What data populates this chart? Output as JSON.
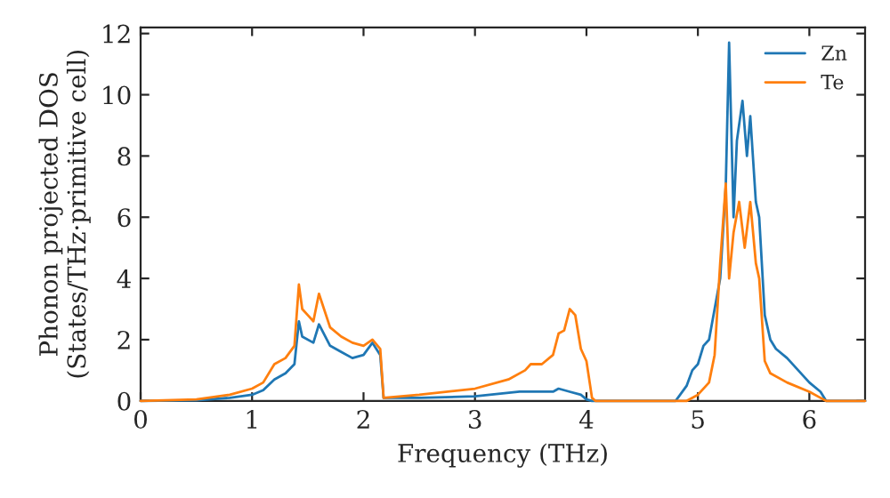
{
  "chart_data": {
    "type": "line",
    "xlabel": "Frequency (THz)",
    "ylabel": "Phonon projected DOS\n(States/THz·primitive cell)",
    "xlim": [
      0,
      6.5
    ],
    "xticks": [
      0,
      1,
      2,
      3,
      4,
      5,
      6
    ],
    "ylim": [
      0,
      12.2
    ],
    "yticks": [
      0,
      2,
      4,
      6,
      8,
      10,
      12
    ],
    "grid": false,
    "legend": "top right",
    "marker": "none",
    "line_style": "solid",
    "series": [
      {
        "name": "Zn",
        "color": "#1f77b4",
        "x": [
          0,
          0.5,
          0.8,
          1.0,
          1.1,
          1.2,
          1.3,
          1.38,
          1.42,
          1.45,
          1.55,
          1.6,
          1.7,
          1.8,
          1.9,
          2.0,
          2.08,
          2.15,
          2.18,
          2.5,
          3.0,
          3.4,
          3.5,
          3.7,
          3.75,
          3.85,
          3.95,
          4.0,
          4.05,
          4.8,
          4.9,
          4.95,
          5.0,
          5.05,
          5.1,
          5.15,
          5.2,
          5.25,
          5.28,
          5.32,
          5.35,
          5.4,
          5.44,
          5.47,
          5.52,
          5.55,
          5.6,
          5.65,
          5.7,
          5.8,
          5.9,
          6.0,
          6.1,
          6.15,
          6.5
        ],
        "values": [
          0,
          0.02,
          0.1,
          0.2,
          0.35,
          0.7,
          0.9,
          1.2,
          2.6,
          2.1,
          1.9,
          2.5,
          1.8,
          1.6,
          1.4,
          1.5,
          1.9,
          1.5,
          0.1,
          0.1,
          0.15,
          0.3,
          0.3,
          0.3,
          0.4,
          0.3,
          0.2,
          0.05,
          0,
          0,
          0.5,
          1.0,
          1.2,
          1.8,
          2.0,
          3.0,
          4.0,
          7.0,
          11.7,
          6.0,
          8.5,
          9.8,
          8.0,
          9.3,
          6.5,
          6.0,
          2.8,
          2.0,
          1.7,
          1.4,
          1.0,
          0.6,
          0.3,
          0,
          0
        ]
      },
      {
        "name": "Te",
        "color": "#ff7f0e",
        "x": [
          0,
          0.5,
          0.8,
          1.0,
          1.1,
          1.2,
          1.3,
          1.38,
          1.42,
          1.45,
          1.5,
          1.55,
          1.6,
          1.7,
          1.8,
          1.9,
          2.0,
          2.08,
          2.15,
          2.18,
          2.5,
          3.0,
          3.3,
          3.45,
          3.5,
          3.6,
          3.7,
          3.75,
          3.8,
          3.85,
          3.9,
          3.95,
          4.0,
          4.05,
          4.08,
          4.9,
          5.0,
          5.1,
          5.15,
          5.2,
          5.25,
          5.28,
          5.32,
          5.37,
          5.42,
          5.47,
          5.52,
          5.55,
          5.6,
          5.65,
          5.8,
          6.0,
          6.1,
          6.15,
          6.5
        ],
        "values": [
          0,
          0.05,
          0.2,
          0.4,
          0.6,
          1.2,
          1.4,
          1.8,
          3.8,
          3.0,
          2.8,
          2.6,
          3.5,
          2.4,
          2.1,
          1.9,
          1.8,
          2.0,
          1.7,
          0.1,
          0.2,
          0.4,
          0.7,
          1.0,
          1.2,
          1.2,
          1.5,
          2.2,
          2.3,
          3.0,
          2.8,
          1.7,
          1.3,
          0.1,
          0,
          0,
          0.2,
          0.6,
          1.5,
          4.5,
          7.1,
          4.0,
          5.5,
          6.5,
          5.0,
          6.5,
          4.5,
          4.0,
          1.3,
          0.9,
          0.6,
          0.3,
          0.1,
          0,
          0
        ]
      }
    ]
  }
}
